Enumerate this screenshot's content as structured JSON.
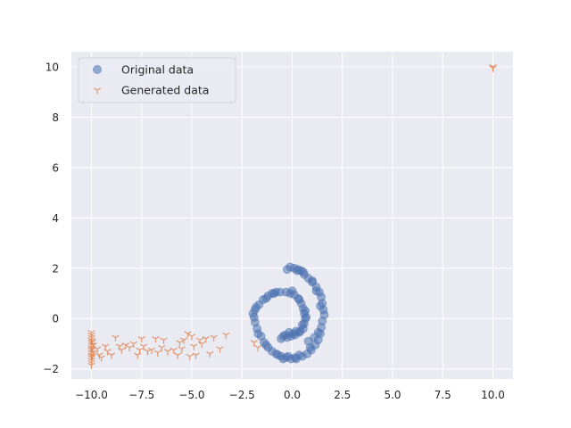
{
  "chart_data": {
    "type": "scatter",
    "title": "",
    "xlabel": "",
    "ylabel": "",
    "xlim": [
      -11.0,
      11.0
    ],
    "ylim": [
      -2.4,
      10.6
    ],
    "xticks": [
      -10.0,
      -7.5,
      -5.0,
      -2.5,
      0.0,
      2.5,
      5.0,
      7.5,
      10.0
    ],
    "xtick_labels": [
      "−10.0",
      "−7.5",
      "−5.0",
      "−2.5",
      "0.0",
      "2.5",
      "5.0",
      "7.5",
      "10.0"
    ],
    "yticks": [
      -2,
      0,
      2,
      4,
      6,
      8,
      10
    ],
    "ytick_labels": [
      "−2",
      "0",
      "2",
      "4",
      "6",
      "8",
      "10"
    ],
    "grid": true,
    "legend_position": "top-left",
    "series": [
      {
        "name": "Original data",
        "marker": "circle",
        "color": "#4c72b0",
        "points": [
          [
            -0.1,
            2.05
          ],
          [
            0.1,
            2.0
          ],
          [
            0.3,
            1.95
          ],
          [
            0.45,
            1.9
          ],
          [
            0.6,
            1.75
          ],
          [
            0.8,
            1.6
          ],
          [
            1.0,
            1.45
          ],
          [
            1.2,
            1.25
          ],
          [
            1.35,
            1.05
          ],
          [
            1.45,
            0.85
          ],
          [
            1.5,
            0.6
          ],
          [
            1.55,
            0.35
          ],
          [
            1.6,
            0.15
          ],
          [
            1.5,
            -0.1
          ],
          [
            1.45,
            -0.35
          ],
          [
            1.4,
            -0.6
          ],
          [
            1.3,
            -0.85
          ],
          [
            1.15,
            -1.05
          ],
          [
            0.95,
            -1.25
          ],
          [
            0.75,
            -1.4
          ],
          [
            0.5,
            -1.5
          ],
          [
            0.2,
            -1.6
          ],
          [
            -0.05,
            -1.6
          ],
          [
            -0.3,
            -1.55
          ],
          [
            -0.55,
            -1.5
          ],
          [
            -0.8,
            -1.4
          ],
          [
            -1.0,
            -1.3
          ],
          [
            -1.2,
            -1.15
          ],
          [
            -1.4,
            -0.95
          ],
          [
            -1.55,
            -0.7
          ],
          [
            -1.75,
            -0.4
          ],
          [
            -1.85,
            -0.15
          ],
          [
            -1.9,
            0.05
          ],
          [
            -1.85,
            0.35
          ],
          [
            -1.65,
            0.55
          ],
          [
            -1.45,
            0.75
          ],
          [
            -1.2,
            0.9
          ],
          [
            -1.0,
            1.0
          ],
          [
            -0.8,
            1.05
          ],
          [
            -0.6,
            1.05
          ],
          [
            -0.3,
            1.05
          ],
          [
            -0.1,
            1.0
          ],
          [
            0.1,
            0.95
          ],
          [
            0.3,
            0.8
          ],
          [
            0.45,
            0.6
          ],
          [
            0.55,
            0.4
          ],
          [
            0.6,
            0.2
          ],
          [
            0.65,
            0.0
          ],
          [
            0.6,
            -0.2
          ],
          [
            0.55,
            -0.4
          ],
          [
            0.35,
            -0.55
          ],
          [
            0.15,
            -0.65
          ],
          [
            -0.05,
            -0.7
          ],
          [
            -0.25,
            -0.75
          ],
          [
            -0.45,
            -0.7
          ],
          [
            0.7,
            0.05
          ],
          [
            0.5,
            -0.25
          ],
          [
            0.2,
            -0.5
          ],
          [
            -0.15,
            -0.55
          ],
          [
            -0.35,
            -0.65
          ],
          [
            1.0,
            1.5
          ],
          [
            0.55,
            1.85
          ],
          [
            1.4,
            0.5
          ],
          [
            1.3,
            -0.55
          ],
          [
            0.9,
            -1.15
          ],
          [
            0.35,
            -1.45
          ],
          [
            -0.2,
            -1.5
          ],
          [
            -0.7,
            -1.45
          ],
          [
            -1.3,
            -1.05
          ],
          [
            -1.7,
            -0.6
          ],
          [
            -1.95,
            0.2
          ],
          [
            -1.8,
            0.45
          ],
          [
            -1.3,
            0.8
          ],
          [
            -0.9,
            1.0
          ],
          [
            0.0,
            1.1
          ],
          [
            0.35,
            0.75
          ],
          [
            0.65,
            0.3
          ],
          [
            0.4,
            -0.5
          ],
          [
            0.05,
            -0.6
          ],
          [
            -0.55,
            -0.8
          ],
          [
            0.8,
            -0.9
          ],
          [
            1.1,
            -0.75
          ],
          [
            0.15,
            -1.55
          ],
          [
            -0.45,
            -1.6
          ],
          [
            1.2,
            1.1
          ],
          [
            0.25,
            1.9
          ],
          [
            -0.25,
            1.95
          ]
        ]
      },
      {
        "name": "Generated data",
        "marker": "tri_down",
        "color": "#dd8452",
        "points": [
          [
            -10.0,
            -0.55
          ],
          [
            -10.0,
            -0.65
          ],
          [
            -10.0,
            -0.75
          ],
          [
            -10.0,
            -0.85
          ],
          [
            -10.0,
            -0.95
          ],
          [
            -10.0,
            -1.05
          ],
          [
            -10.0,
            -1.15
          ],
          [
            -10.0,
            -1.25
          ],
          [
            -10.0,
            -1.35
          ],
          [
            -10.0,
            -1.45
          ],
          [
            -10.0,
            -1.55
          ],
          [
            -10.0,
            -1.65
          ],
          [
            -10.0,
            -1.75
          ],
          [
            -10.0,
            -1.85
          ],
          [
            -9.95,
            -0.9
          ],
          [
            -9.95,
            -1.2
          ],
          [
            -9.95,
            -1.5
          ],
          [
            -9.9,
            -1.05
          ],
          [
            -9.9,
            -1.35
          ],
          [
            -9.7,
            -1.2
          ],
          [
            -9.6,
            -1.45
          ],
          [
            -9.5,
            -1.55
          ],
          [
            -9.3,
            -1.1
          ],
          [
            -9.2,
            -1.3
          ],
          [
            -9.0,
            -1.45
          ],
          [
            -8.8,
            -0.75
          ],
          [
            -8.6,
            -1.1
          ],
          [
            -8.5,
            -1.25
          ],
          [
            -8.3,
            -1.05
          ],
          [
            -8.1,
            -1.15
          ],
          [
            -7.9,
            -1.0
          ],
          [
            -7.7,
            -1.45
          ],
          [
            -7.6,
            -1.25
          ],
          [
            -7.5,
            -0.8
          ],
          [
            -7.4,
            -1.1
          ],
          [
            -7.2,
            -1.3
          ],
          [
            -7.0,
            -1.25
          ],
          [
            -6.8,
            -0.8
          ],
          [
            -6.7,
            -1.35
          ],
          [
            -6.5,
            -1.15
          ],
          [
            -6.4,
            -0.85
          ],
          [
            -6.2,
            -1.3
          ],
          [
            -5.9,
            -1.25
          ],
          [
            -5.7,
            -1.45
          ],
          [
            -5.6,
            -0.95
          ],
          [
            -5.5,
            -1.2
          ],
          [
            -5.4,
            -0.85
          ],
          [
            -5.2,
            -0.6
          ],
          [
            -5.1,
            -1.5
          ],
          [
            -5.0,
            -0.7
          ],
          [
            -4.9,
            -1.1
          ],
          [
            -4.8,
            -1.45
          ],
          [
            -4.6,
            -0.85
          ],
          [
            -4.5,
            -1.0
          ],
          [
            -4.3,
            -0.8
          ],
          [
            -4.1,
            -1.4
          ],
          [
            -3.9,
            -0.75
          ],
          [
            -3.6,
            -1.2
          ],
          [
            -3.3,
            -0.65
          ],
          [
            -1.9,
            -0.95
          ],
          [
            -1.7,
            -1.15
          ],
          [
            10.0,
            9.95
          ],
          [
            10.0,
            10.0
          ]
        ]
      }
    ]
  }
}
